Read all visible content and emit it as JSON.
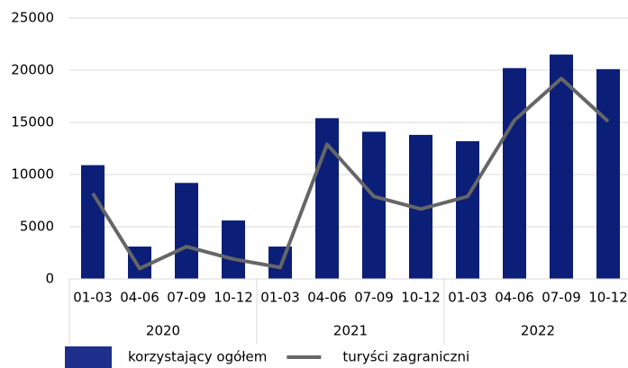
{
  "chart_data": {
    "type": "bar_line",
    "categories": [
      "01-03",
      "04-06",
      "07-09",
      "10-12",
      "01-03",
      "04-06",
      "07-09",
      "10-12",
      "01-03",
      "04-06",
      "07-09",
      "10-12"
    ],
    "groups": [
      {
        "label": "2020",
        "size": 4
      },
      {
        "label": "2021",
        "size": 4
      },
      {
        "label": "2022",
        "size": 4
      }
    ],
    "series": [
      {
        "name": "korzystający ogółem",
        "type": "bar",
        "color": "#0b1e78",
        "values": [
          10900,
          3100,
          9200,
          5600,
          3100,
          15400,
          14100,
          13800,
          13200,
          20200,
          21500,
          20100
        ]
      },
      {
        "name": "turyści zagraniczni",
        "type": "line",
        "color": "#666666",
        "values": [
          8200,
          1000,
          3100,
          1900,
          1100,
          12900,
          7900,
          6700,
          7900,
          15200,
          19200,
          15100
        ]
      }
    ],
    "ylim": [
      0,
      25000
    ],
    "yticks": [
      0,
      5000,
      10000,
      15000,
      20000,
      25000
    ],
    "grid": true,
    "legend": "bottom"
  }
}
